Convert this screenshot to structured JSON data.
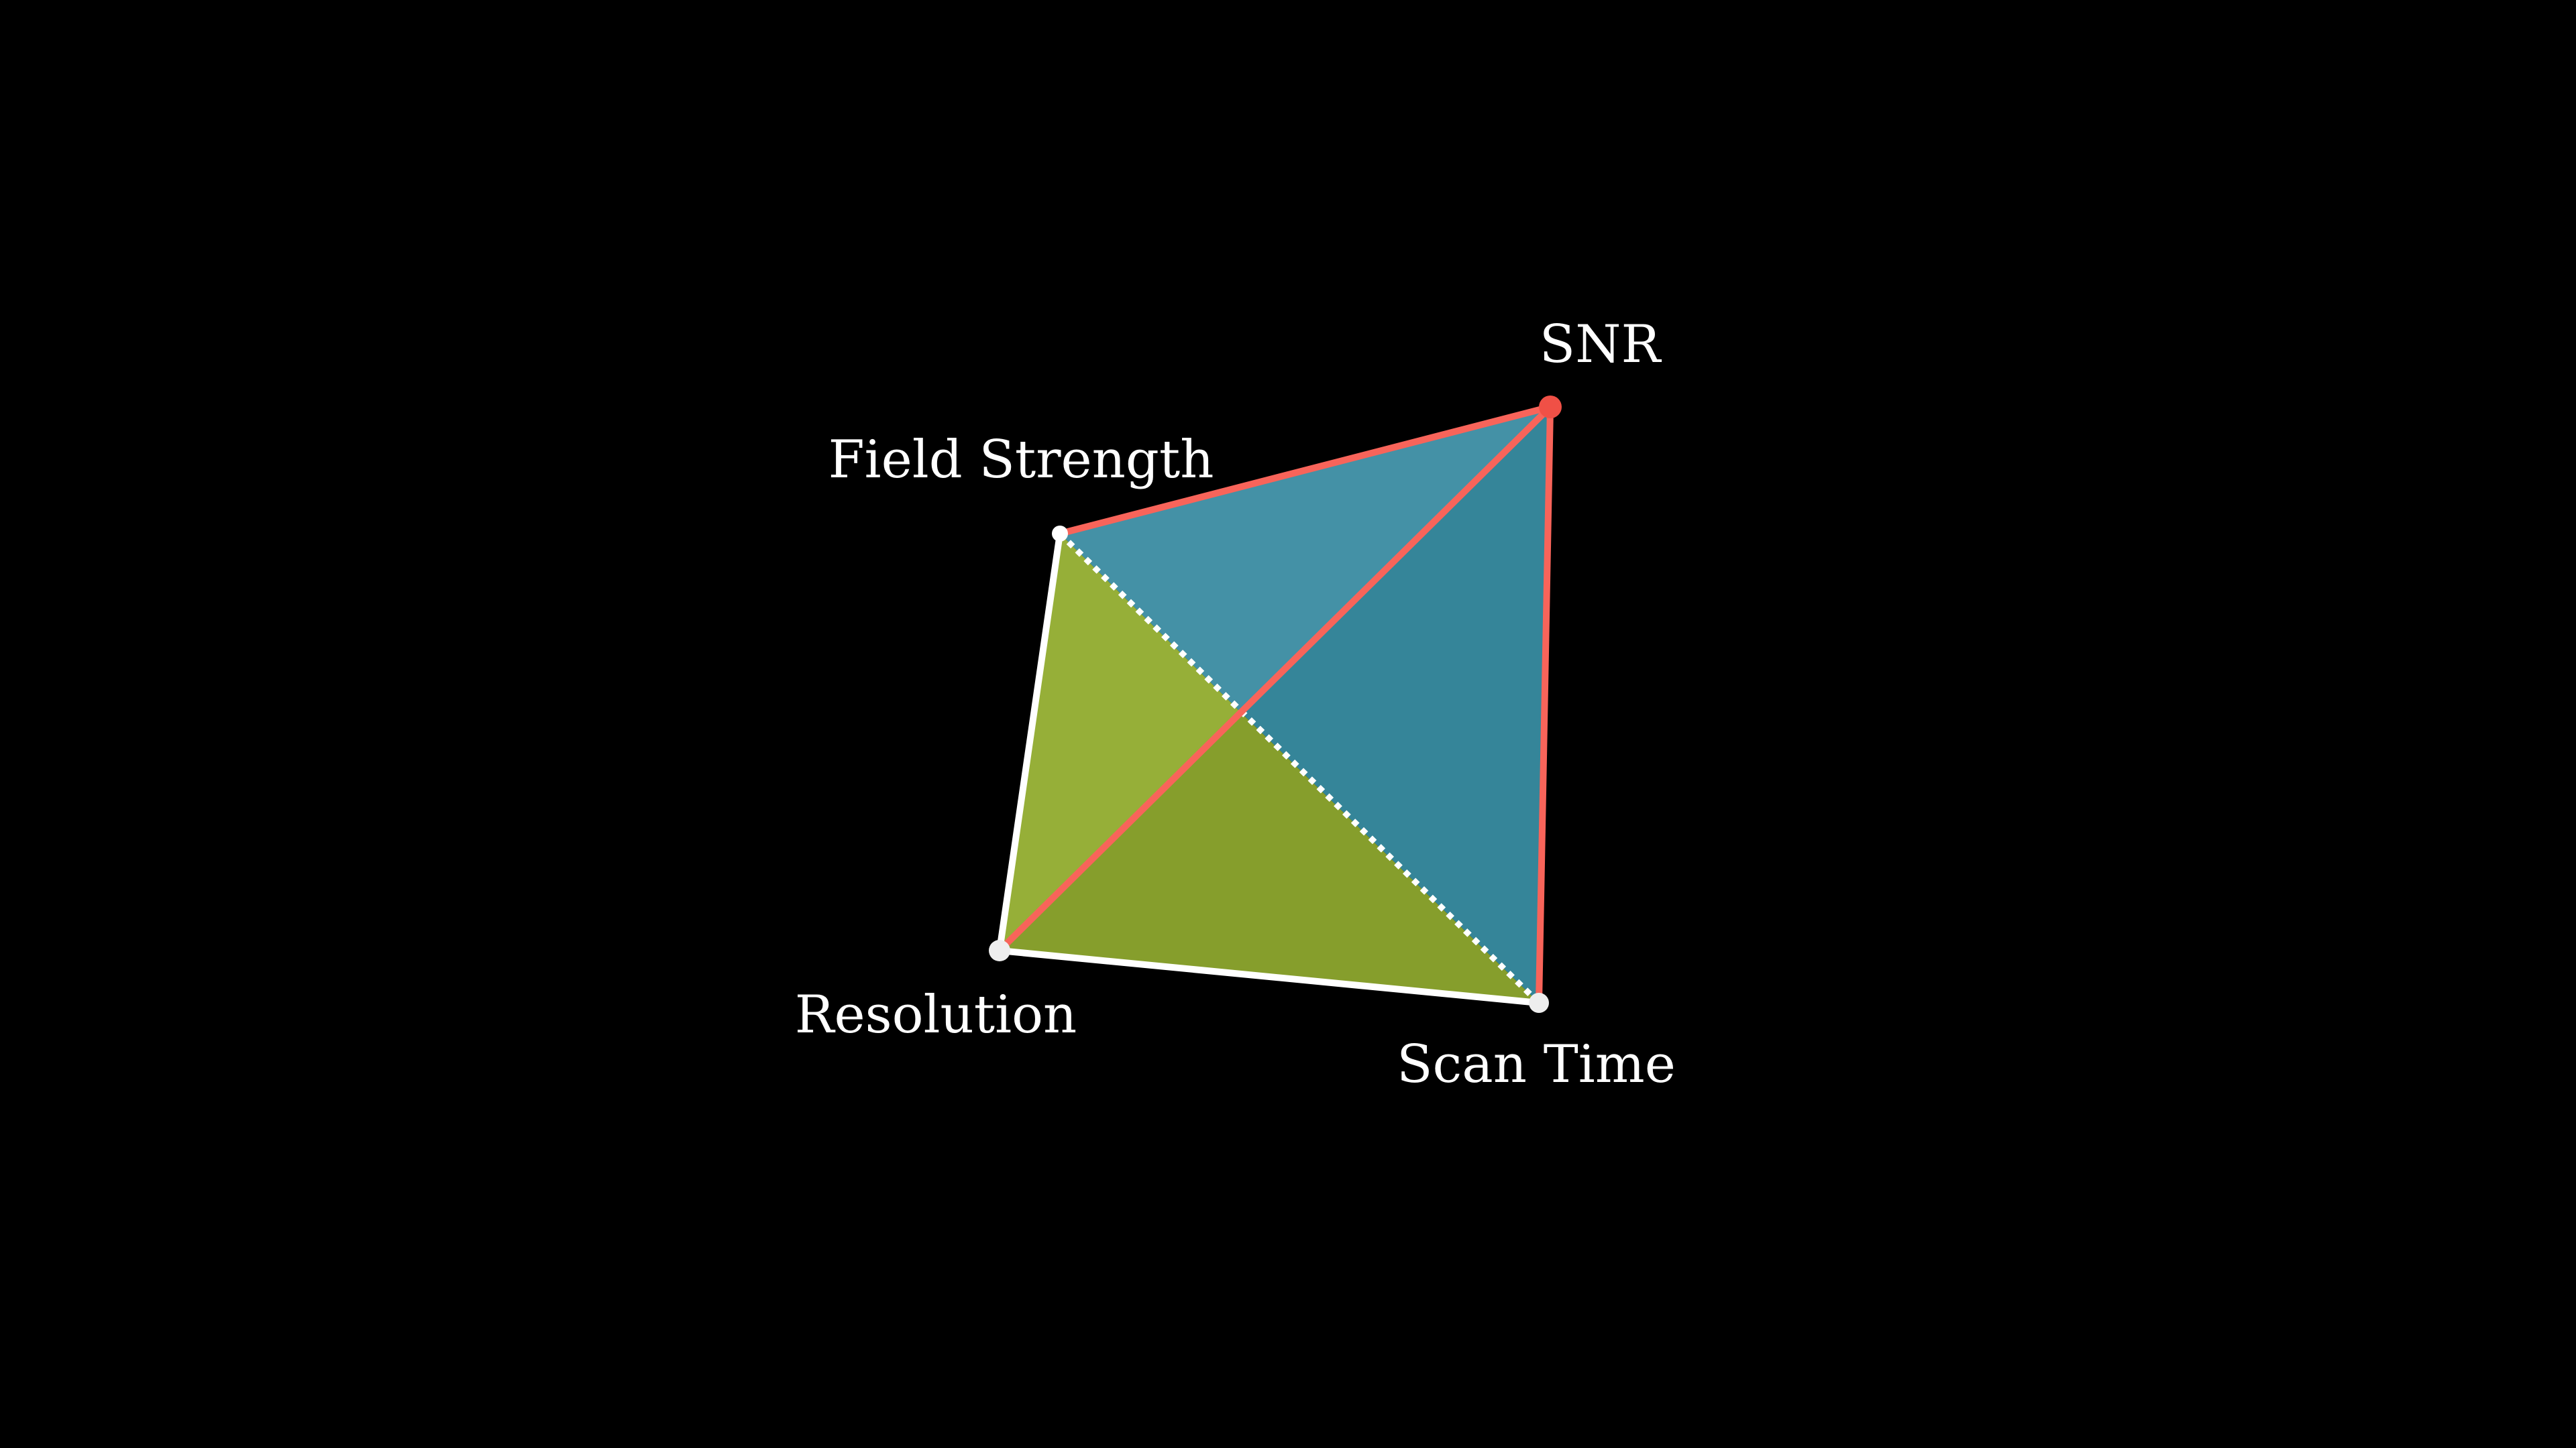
{
  "diagram": {
    "vertices": [
      {
        "id": "snr",
        "label": "SNR"
      },
      {
        "id": "field",
        "label": "Field Strength"
      },
      {
        "id": "res",
        "label": "Resolution"
      },
      {
        "id": "scan",
        "label": "Scan Time"
      }
    ],
    "colors": {
      "background": "#000000",
      "face_top": "#4491a6",
      "face_right": "#358599",
      "face_left": "#96af38",
      "face_bottom": "#869e2c",
      "highlight_edges": "#f8645a",
      "edges": "#ffffff"
    }
  }
}
